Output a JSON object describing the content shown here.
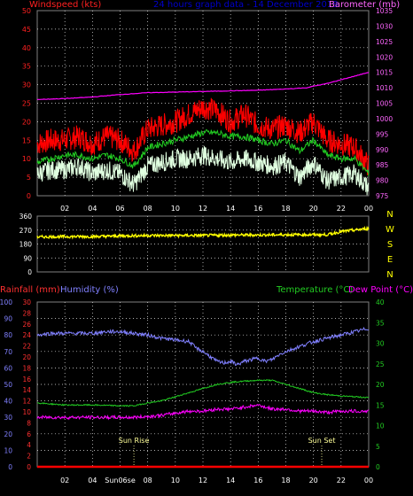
{
  "colors": {
    "background": "#000000",
    "grid": "#e8e8e8",
    "frame": "#808080",
    "axis_text": "#ffffff",
    "windspeed_axis": "#ff2020",
    "barometer": "#ff00ff",
    "barometer_axis": "#ff66ff",
    "wind_gust": "#ff0000",
    "wind_avg": "#22cc22",
    "wind_speed": "#e0ffe0",
    "wind_dir": "#ffff00",
    "compass": "#ffff00",
    "rainfall_axis": "#ff3030",
    "rainfall": "#ff0000",
    "humidity_axis": "#8080ff",
    "humidity": "#8080ff",
    "temperature_axis": "#22cc22",
    "temperature": "#22cc22",
    "dewpoint_axis": "#ff00ff",
    "dewpoint": "#ff00ff",
    "header_title": "#0000cc",
    "sun_text": "#ffff99"
  },
  "header": {
    "windspeed_label": "Windspeed (kts)",
    "title": "24 hours graph data - 14 December 2018",
    "barometer_label": "Barometer (mb)"
  },
  "wind_chart": {
    "type": "line",
    "x_tick_labels": [
      "02",
      "04",
      "06",
      "08",
      "10",
      "12",
      "14",
      "16",
      "18",
      "20",
      "22",
      "00"
    ],
    "x_range_hours": [
      0,
      24
    ],
    "y_ticks": [
      "0",
      "5",
      "10",
      "15",
      "20",
      "25",
      "30",
      "35",
      "40",
      "45",
      "50"
    ],
    "ylim": [
      0,
      50
    ],
    "y2_ticks": [
      "975",
      "980",
      "985",
      "990",
      "995",
      "1000",
      "1005",
      "1010",
      "1015",
      "1020",
      "1025",
      "1030",
      "1035"
    ],
    "y2lim": [
      975,
      1035
    ],
    "grid": true
  },
  "dir_chart": {
    "type": "line",
    "y_ticks": [
      "0",
      "90",
      "180",
      "270",
      "360"
    ],
    "ylim": [
      0,
      360
    ],
    "compass_letters": [
      "N",
      "W",
      "S",
      "E",
      "N"
    ],
    "grid": true
  },
  "lower_header": {
    "rainfall_label": "Rainfall (mm)",
    "humidity_label": "Humidity (%)",
    "temperature_label": "Temperature (°C)",
    "dewpoint_label": "Dew Point (°C)"
  },
  "lower_chart": {
    "type": "line",
    "x_tick_labels": [
      "02",
      "04",
      "Sun06se",
      "08",
      "10",
      "12",
      "14",
      "16",
      "18",
      "20",
      "22",
      "00"
    ],
    "humidity_ticks": [
      "0",
      "10",
      "20",
      "30",
      "40",
      "50",
      "60",
      "70",
      "80",
      "90",
      "100"
    ],
    "humidity_range": [
      0,
      100
    ],
    "rainfall_ticks": [
      "0",
      "2",
      "4",
      "6",
      "8",
      "10",
      "12",
      "14",
      "16",
      "18",
      "20",
      "22",
      "24",
      "26",
      "28",
      "30"
    ],
    "rainfall_range": [
      0,
      30
    ],
    "temp_ticks": [
      "0",
      "5",
      "10",
      "15",
      "20",
      "25",
      "30",
      "35",
      "40"
    ],
    "temp_range": [
      0,
      40
    ],
    "grid": true
  },
  "sun": {
    "sunrise_label": "Sun Rise",
    "sunset_label": "Sun Set",
    "sunrise_hour": 7.0,
    "sunset_hour": 20.6
  },
  "chart_data": [
    {
      "type": "line",
      "title": "24 hours graph data - 14 December 2018",
      "x_unit": "hour",
      "series": [
        {
          "name": "Windspeed (kts)",
          "axis": "left",
          "component": "gust",
          "x": [
            0,
            1,
            2,
            3,
            4,
            5,
            6,
            7,
            8,
            9,
            10,
            11,
            12,
            13,
            14,
            15,
            16,
            17,
            18,
            19,
            20,
            21,
            22,
            23,
            24
          ],
          "values": [
            14,
            15,
            15,
            16,
            14,
            16,
            15,
            12,
            18,
            19,
            20,
            22,
            24,
            23,
            20,
            22,
            19,
            18,
            19,
            17,
            20,
            15,
            14,
            13,
            8
          ]
        },
        {
          "name": "Windspeed (kts)",
          "axis": "left",
          "component": "average",
          "x": [
            0,
            1,
            2,
            3,
            4,
            5,
            6,
            7,
            8,
            9,
            10,
            11,
            12,
            13,
            14,
            15,
            16,
            17,
            18,
            19,
            20,
            21,
            22,
            23,
            24
          ],
          "values": [
            9,
            10,
            11,
            11,
            10,
            11,
            10,
            8,
            13,
            14,
            15,
            16,
            17,
            17,
            16,
            16,
            15,
            14,
            15,
            12,
            15,
            11,
            10,
            10,
            6
          ]
        },
        {
          "name": "Windspeed (kts)",
          "axis": "left",
          "component": "speed",
          "x": [
            0,
            1,
            2,
            3,
            4,
            5,
            6,
            7,
            8,
            9,
            10,
            11,
            12,
            13,
            14,
            15,
            16,
            17,
            18,
            19,
            20,
            21,
            22,
            23,
            24
          ],
          "values": [
            6,
            7,
            7,
            8,
            6,
            7,
            6,
            3,
            8,
            9,
            10,
            10,
            11,
            10,
            9,
            10,
            9,
            8,
            9,
            5,
            9,
            4,
            5,
            6,
            2
          ]
        },
        {
          "name": "Barometer (mb)",
          "axis": "right",
          "x": [
            0,
            2,
            4,
            6,
            8,
            10,
            12,
            14,
            16,
            18,
            19.5,
            20,
            21,
            22,
            23,
            24
          ],
          "values": [
            1006.2,
            1006.5,
            1007,
            1007.8,
            1008.4,
            1008.6,
            1008.8,
            1009,
            1009.2,
            1009.6,
            1010,
            1010.5,
            1011.4,
            1012.6,
            1013.8,
            1015
          ]
        }
      ]
    },
    {
      "type": "line",
      "x_unit": "hour",
      "y_unit": "degrees",
      "series": [
        {
          "name": "Wind direction",
          "x": [
            0,
            2,
            4,
            6,
            8,
            10,
            12,
            14,
            16,
            18,
            20,
            21,
            22,
            23,
            24
          ],
          "values": [
            225,
            228,
            228,
            232,
            235,
            235,
            235,
            238,
            238,
            240,
            240,
            240,
            260,
            270,
            280
          ]
        }
      ]
    },
    {
      "type": "line",
      "x_unit": "hour",
      "series": [
        {
          "name": "Rainfall (mm)",
          "axis": "rainfall",
          "x": [
            0,
            24
          ],
          "values": [
            0,
            0
          ]
        },
        {
          "name": "Humidity (%)",
          "axis": "humidity",
          "x": [
            0,
            1,
            2,
            3,
            4,
            5,
            6,
            7,
            8,
            9,
            10,
            11,
            11.5,
            12,
            12.5,
            13,
            13.5,
            14,
            14.5,
            15,
            15.5,
            16,
            16.5,
            17,
            17.5,
            18,
            19,
            20,
            21,
            22,
            23,
            24
          ],
          "values": [
            80,
            81,
            81,
            81,
            81,
            82,
            82,
            81,
            80,
            78,
            77,
            76,
            72,
            70,
            67,
            64,
            63,
            64,
            62,
            64,
            65,
            66,
            64,
            65,
            68,
            70,
            73,
            76,
            78,
            80,
            82,
            84
          ]
        },
        {
          "name": "Temperature (°C)",
          "axis": "temperature",
          "x": [
            0,
            2,
            4,
            6,
            7,
            8,
            9,
            10,
            11,
            12,
            13,
            14,
            15,
            16,
            17,
            18,
            19,
            20,
            21,
            22,
            23,
            24
          ],
          "values": [
            15.5,
            15,
            15,
            14.8,
            14.8,
            15.5,
            16,
            17,
            18,
            19,
            20,
            20.5,
            20.8,
            21,
            21,
            20,
            19,
            18,
            17.5,
            17.2,
            17,
            16.8
          ]
        },
        {
          "name": "Dew Point (°C)",
          "axis": "temperature",
          "x": [
            0,
            2,
            4,
            6,
            7,
            8,
            9,
            10,
            11,
            12,
            13,
            14,
            15,
            16,
            17,
            18,
            19,
            20,
            21,
            22,
            23,
            24
          ],
          "values": [
            12,
            12,
            12,
            12,
            12,
            12.2,
            12.5,
            13,
            13.5,
            13.5,
            14,
            14,
            14.5,
            15,
            14,
            14,
            13.5,
            13.5,
            13.2,
            13.5,
            13.5,
            13.5
          ]
        }
      ]
    }
  ]
}
